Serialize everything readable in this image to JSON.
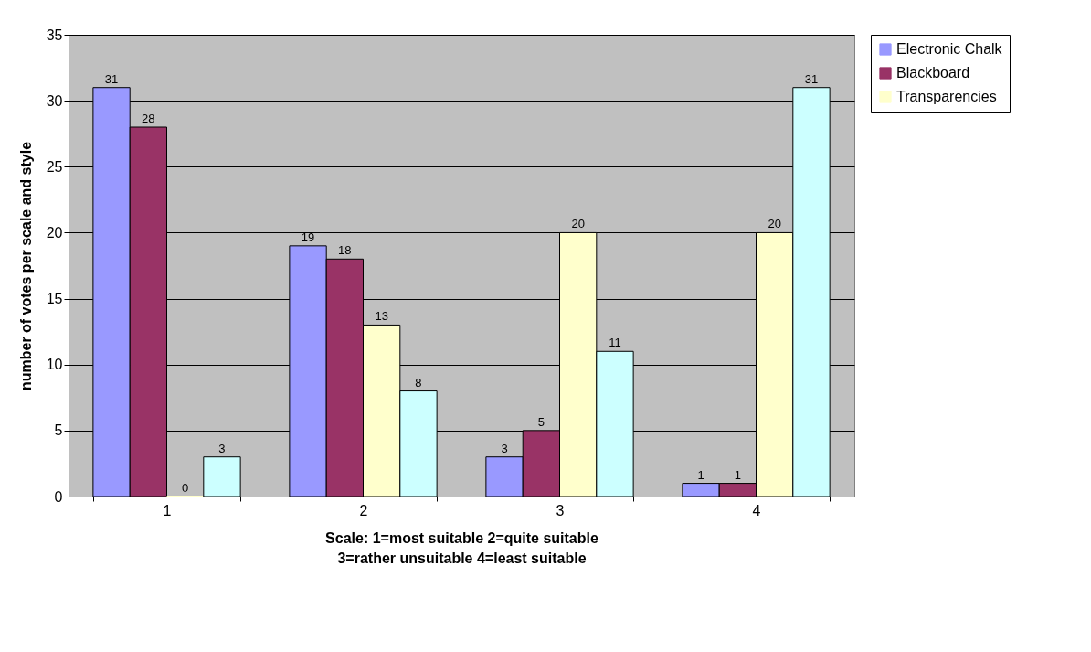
{
  "chart_data": {
    "type": "bar",
    "categories": [
      "1",
      "2",
      "3",
      "4"
    ],
    "xlabel": "Scale:  1=most suitable        2=quite suitable\n3=rather unsuitable    4=least suitable",
    "ylabel": "number of votes per scale and style",
    "series": [
      {
        "name": "Electronic Chalk",
        "color": "#9999ff",
        "values": [
          31,
          19,
          3,
          1
        ]
      },
      {
        "name": "Blackboard",
        "color": "#993366",
        "values": [
          28,
          18,
          5,
          1
        ]
      },
      {
        "name": "Transparencies",
        "color": "#ffffcc",
        "values": [
          0,
          13,
          20,
          20
        ]
      },
      {
        "color": "#ccffff",
        "values": [
          3,
          8,
          11,
          31
        ]
      }
    ],
    "ylim": [
      0,
      35
    ],
    "yticks": [
      0,
      5,
      10,
      15,
      20,
      25,
      30,
      35
    ],
    "grid": "y",
    "legend": "right",
    "data_labels": true
  }
}
